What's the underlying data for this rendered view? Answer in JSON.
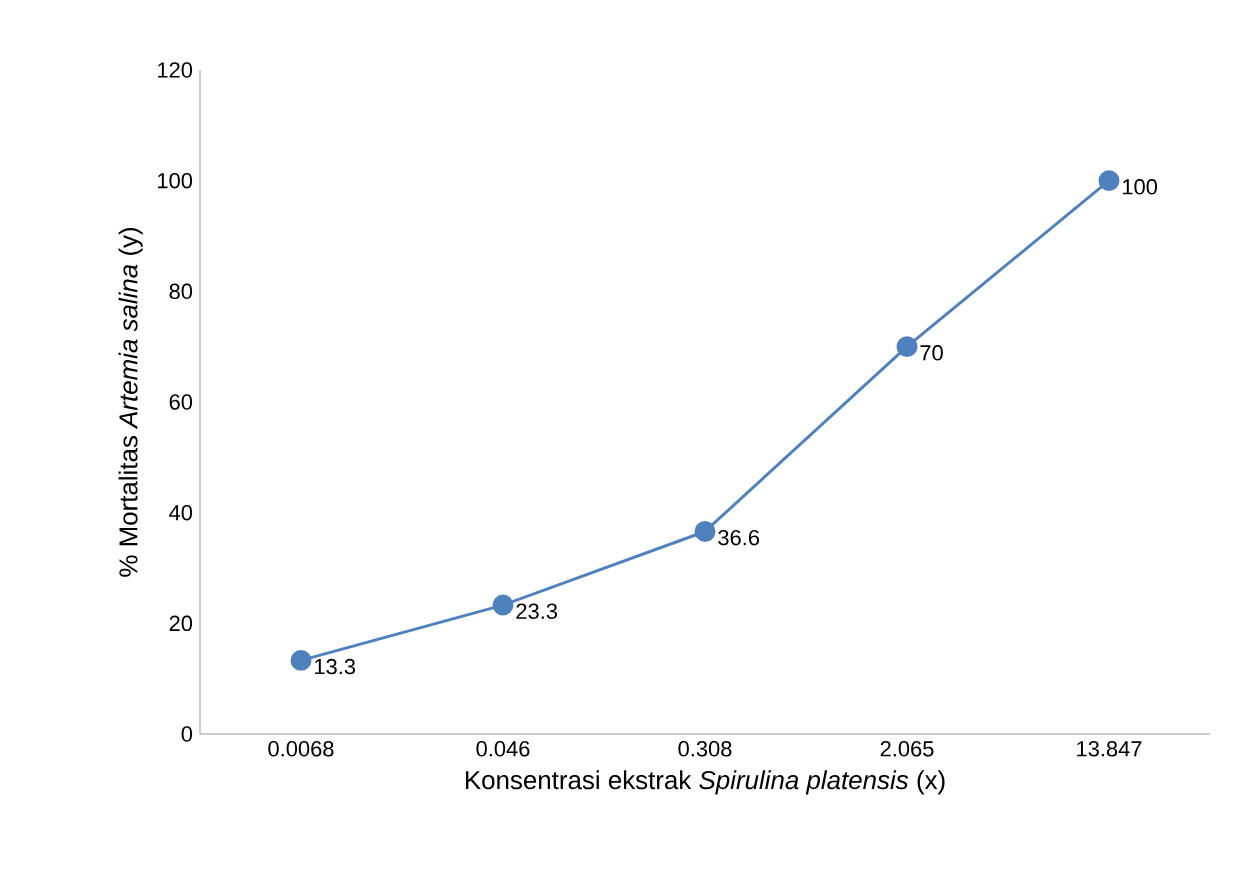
{
  "chart_data": {
    "type": "line",
    "xlabel": "Konsentrasi ekstrak *Spirulina platensis*  (x)",
    "ylabel": "% Mortalitas *Artemia salina* (y)",
    "categories": [
      "0.0068",
      "0.046",
      "0.308",
      "2.065",
      "13.847"
    ],
    "values": [
      13.3,
      23.3,
      36.6,
      70,
      100
    ],
    "color": "#4f81bd",
    "ylim": [
      0,
      120
    ],
    "yticks": [
      0,
      20,
      40,
      60,
      80,
      100,
      120
    ],
    "data_labels": true,
    "marker": "circle",
    "line_style": "solid"
  }
}
